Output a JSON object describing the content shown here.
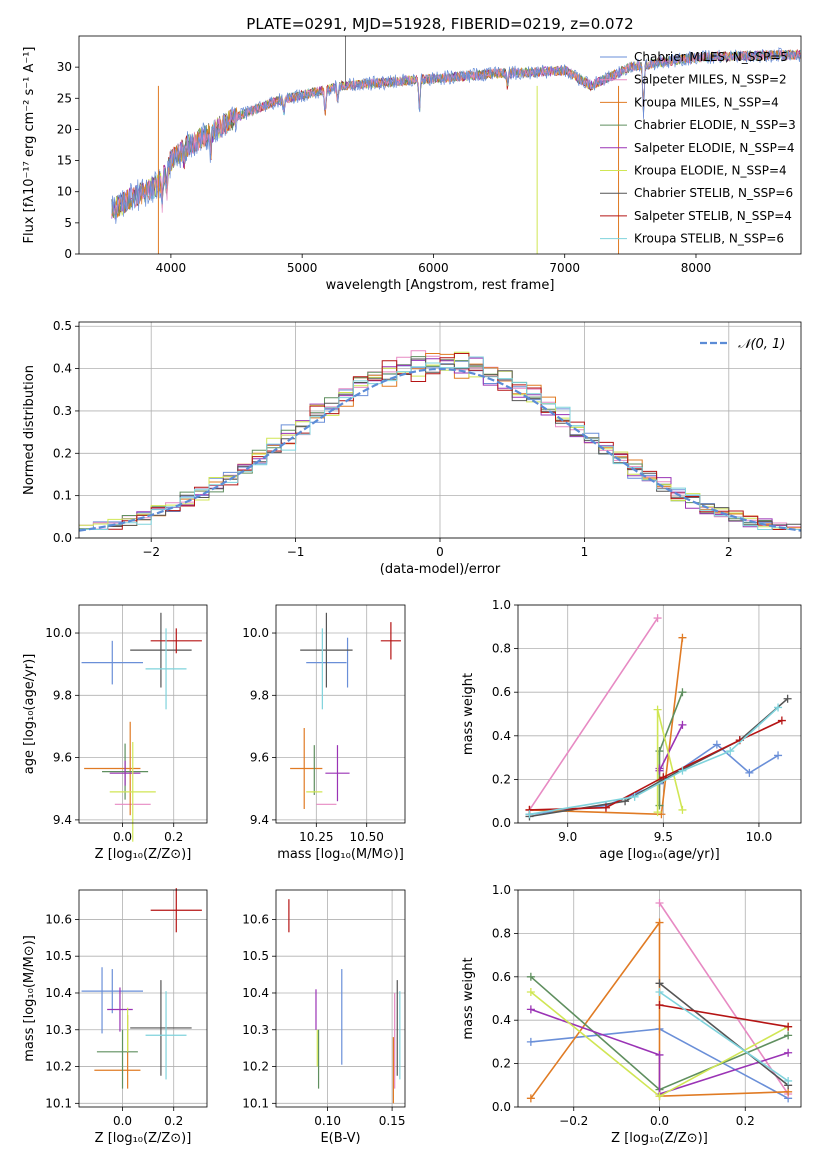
{
  "figure_title": "PLATE=0291, MJD=51928, FIBERID=0219, z=0.072",
  "chart_data": [
    {
      "id": "spectrum",
      "type": "line",
      "title": "PLATE=0291, MJD=51928, FIBERID=0219, z=0.072",
      "xlabel": "wavelength [Angstrom, rest frame]",
      "ylabel": "Flux [fλ10⁻¹⁷ erg cm⁻² s⁻¹ A⁻¹]",
      "xlim": [
        3300,
        8800
      ],
      "ylim": [
        0,
        35
      ],
      "xticks": [
        4000,
        5000,
        6000,
        7000,
        8000
      ],
      "yticks": [
        0,
        5,
        10,
        15,
        20,
        25,
        30
      ],
      "legend_position": "top-right",
      "continuum_x": [
        3550,
        3700,
        3900,
        4000,
        4100,
        4300,
        4500,
        4800,
        5000,
        5300,
        5600,
        5900,
        6200,
        6500,
        6800,
        7000,
        7200,
        7500,
        7800,
        8000,
        8300,
        8800
      ],
      "continuum_y": [
        7,
        9,
        11,
        15,
        17,
        19.5,
        22,
        24.5,
        25.5,
        27,
        27.5,
        28,
        28.5,
        29,
        29.2,
        29.5,
        27,
        30,
        31,
        31.5,
        31.8,
        32
      ],
      "series": [
        {
          "name": "Chabrier MILES, N_SSP=5",
          "color": "#6a8fd8"
        },
        {
          "name": "Salpeter MILES, N_SSP=2",
          "color": "#e78ac3"
        },
        {
          "name": "Kroupa MILES, N_SSP=4",
          "color": "#e07b24"
        },
        {
          "name": "Chabrier ELODIE, N_SSP=3",
          "color": "#5f8f5f"
        },
        {
          "name": "Salpeter ELODIE, N_SSP=4",
          "color": "#9a33b5"
        },
        {
          "name": "Kroupa ELODIE, N_SSP=4",
          "color": "#d0e654"
        },
        {
          "name": "Chabrier STELIB, N_SSP=6",
          "color": "#555555"
        },
        {
          "name": "Salpeter STELIB, N_SSP=4",
          "color": "#b51414"
        },
        {
          "name": "Kroupa STELIB, N_SSP=6",
          "color": "#7fd3dc"
        }
      ]
    },
    {
      "id": "residuals",
      "type": "line",
      "xlabel": "(data-model)/error",
      "ylabel": "Normed distribution",
      "xlim": [
        -2.5,
        2.5
      ],
      "ylim": [
        0,
        0.51
      ],
      "xticks": [
        -2,
        -1,
        0,
        1,
        2
      ],
      "yticks": [
        0.0,
        0.1,
        0.2,
        0.3,
        0.4,
        0.5
      ],
      "grid": true,
      "legend_position": "top-right",
      "reference_series": "𝒩(0, 1)",
      "histogram_series_colors": [
        "#6a8fd8",
        "#e78ac3",
        "#e07b24",
        "#5f8f5f",
        "#9a33b5",
        "#d0e654",
        "#555555",
        "#b51414",
        "#7fd3dc"
      ]
    },
    {
      "id": "age_vs_Z",
      "type": "scatter",
      "xlabel": "Z [log₁₀(Z/Z⊙)]",
      "ylabel": "age  [log₁₀(age/yr)]",
      "xlim": [
        -0.17,
        0.33
      ],
      "ylim": [
        9.39,
        10.09
      ],
      "xticks": [
        0.0,
        0.2
      ],
      "yticks": [
        9.4,
        9.6,
        9.8,
        10.0
      ],
      "grid": true,
      "points": [
        {
          "x": -0.04,
          "xerr": 0.12,
          "y": 9.905,
          "yerr": 0.07,
          "color": "#6a8fd8"
        },
        {
          "x": 0.04,
          "xerr": 0.07,
          "y": 9.45,
          "yerr": 0.0,
          "color": "#e78ac3"
        },
        {
          "x": 0.03,
          "xerr": 0.0,
          "y": 9.565,
          "yerr": 0.15,
          "color": "#e07b24"
        },
        {
          "x": -0.04,
          "xerr": 0.11,
          "y": 9.565,
          "yerr": 0.0,
          "color": "#e07b24"
        },
        {
          "x": 0.01,
          "xerr": 0.09,
          "y": 9.555,
          "yerr": 0.09,
          "color": "#5f8f5f"
        },
        {
          "x": 0.01,
          "xerr": 0.06,
          "y": 9.55,
          "yerr": 0.04,
          "color": "#9a33b5"
        },
        {
          "x": 0.04,
          "xerr": 0.09,
          "y": 9.49,
          "yerr": 0.16,
          "color": "#d0e654"
        },
        {
          "x": 0.15,
          "xerr": 0.12,
          "y": 9.945,
          "yerr": 0.12,
          "color": "#555555"
        },
        {
          "x": 0.21,
          "xerr": 0.1,
          "y": 9.975,
          "yerr": 0.04,
          "color": "#b51414"
        },
        {
          "x": 0.17,
          "xerr": 0.08,
          "y": 9.885,
          "yerr": 0.13,
          "color": "#7fd3dc"
        }
      ]
    },
    {
      "id": "age_vs_mass",
      "type": "scatter",
      "xlabel": "mass [log₁₀(M/M⊙)]",
      "ylabel": "",
      "xlim": [
        10.05,
        10.69
      ],
      "ylim": [
        9.39,
        10.09
      ],
      "xticks": [
        10.25,
        10.5
      ],
      "yticks": [
        9.4,
        9.6,
        9.8,
        10.0
      ],
      "grid": true,
      "points": [
        {
          "x": 10.405,
          "xerr": 0.0,
          "y": 9.905,
          "yerr": 0.08,
          "color": "#6a8fd8"
        },
        {
          "x": 10.3,
          "xerr": 0.1,
          "y": 9.905,
          "yerr": 0.0,
          "color": "#6a8fd8"
        },
        {
          "x": 10.3,
          "xerr": 0.05,
          "y": 9.45,
          "yerr": 0.0,
          "color": "#e78ac3"
        },
        {
          "x": 10.19,
          "xerr": 0.0,
          "y": 9.565,
          "yerr": 0.13,
          "color": "#e07b24"
        },
        {
          "x": 10.2,
          "xerr": 0.08,
          "y": 9.565,
          "yerr": 0.0,
          "color": "#e07b24"
        },
        {
          "x": 10.24,
          "xerr": 0.0,
          "y": 9.56,
          "yerr": 0.08,
          "color": "#5f8f5f"
        },
        {
          "x": 10.355,
          "xerr": 0.06,
          "y": 9.55,
          "yerr": 0.09,
          "color": "#9a33b5"
        },
        {
          "x": 10.24,
          "xerr": 0.04,
          "y": 9.49,
          "yerr": 0.0,
          "color": "#d0e654"
        },
        {
          "x": 10.3,
          "xerr": 0.13,
          "y": 9.945,
          "yerr": 0.12,
          "color": "#555555"
        },
        {
          "x": 10.62,
          "xerr": 0.05,
          "y": 9.975,
          "yerr": 0.06,
          "color": "#b51414"
        },
        {
          "x": 10.28,
          "xerr": 0.0,
          "y": 9.885,
          "yerr": 0.13,
          "color": "#7fd3dc"
        }
      ]
    },
    {
      "id": "weight_vs_age",
      "type": "line",
      "xlabel": "age  [log₁₀(age/yr)]",
      "ylabel": "mass weight",
      "xlim": [
        8.74,
        10.22
      ],
      "ylim": [
        0,
        1.0
      ],
      "xticks": [
        9.0,
        9.5,
        10.0
      ],
      "yticks": [
        0.0,
        0.2,
        0.4,
        0.6,
        0.8,
        1.0
      ],
      "grid": true,
      "series": [
        {
          "color": "#6a8fd8",
          "x": [
            8.8,
            9.2,
            9.48,
            9.78,
            9.95,
            10.1
          ],
          "y": [
            0.04,
            0.08,
            0.18,
            0.36,
            0.23,
            0.31
          ]
        },
        {
          "color": "#e78ac3",
          "x": [
            8.8,
            9.47
          ],
          "y": [
            0.06,
            0.94
          ]
        },
        {
          "color": "#e07b24",
          "x": [
            8.8,
            9.49,
            9.6
          ],
          "y": [
            0.06,
            0.04,
            0.85
          ]
        },
        {
          "color": "#5f8f5f",
          "x": [
            9.48,
            9.48,
            9.6
          ],
          "y": [
            0.08,
            0.33,
            0.6
          ]
        },
        {
          "color": "#9a33b5",
          "x": [
            9.48,
            9.48,
            9.6
          ],
          "y": [
            0.25,
            0.24,
            0.45
          ]
        },
        {
          "color": "#d0e654",
          "x": [
            9.47,
            9.47,
            9.6
          ],
          "y": [
            0.05,
            0.52,
            0.06
          ]
        },
        {
          "color": "#555555",
          "x": [
            8.8,
            9.3,
            9.5,
            9.9,
            10.15
          ],
          "y": [
            0.03,
            0.1,
            0.2,
            0.38,
            0.57
          ]
        },
        {
          "color": "#b51414",
          "x": [
            8.8,
            9.2,
            9.5,
            9.9,
            10.12
          ],
          "y": [
            0.06,
            0.07,
            0.21,
            0.38,
            0.47
          ]
        },
        {
          "color": "#7fd3dc",
          "x": [
            8.8,
            9.35,
            9.6,
            9.85,
            10.1
          ],
          "y": [
            0.04,
            0.12,
            0.24,
            0.33,
            0.53
          ]
        }
      ]
    },
    {
      "id": "mass_vs_Z",
      "type": "scatter",
      "xlabel": "Z [log₁₀(Z/Z⊙)]",
      "ylabel": "mass [log₁₀(M/M⊙)]",
      "xlim": [
        -0.17,
        0.33
      ],
      "ylim": [
        10.09,
        10.68
      ],
      "xticks": [
        0.0,
        0.2
      ],
      "yticks": [
        10.1,
        10.2,
        10.3,
        10.4,
        10.5,
        10.6
      ],
      "grid": true,
      "points": [
        {
          "x": -0.04,
          "xerr": 0.12,
          "y": 10.405,
          "yerr": 0.06,
          "color": "#6a8fd8"
        },
        {
          "x": -0.08,
          "xerr": 0.0,
          "y": 10.38,
          "yerr": 0.09,
          "color": "#6a8fd8"
        },
        {
          "x": -0.02,
          "xerr": 0.09,
          "y": 10.19,
          "yerr": 0.0,
          "color": "#e07b24"
        },
        {
          "x": 0.02,
          "xerr": 0.0,
          "y": 10.24,
          "yerr": 0.1,
          "color": "#e07b24"
        },
        {
          "x": -0.02,
          "xerr": 0.08,
          "y": 10.24,
          "yerr": 0.0,
          "color": "#5f8f5f"
        },
        {
          "x": 0.0,
          "xerr": 0.0,
          "y": 10.22,
          "yerr": 0.08,
          "color": "#5f8f5f"
        },
        {
          "x": -0.01,
          "xerr": 0.05,
          "y": 10.355,
          "yerr": 0.06,
          "color": "#9a33b5"
        },
        {
          "x": 0.02,
          "xerr": 0.0,
          "y": 10.3,
          "yerr": 0.06,
          "color": "#d0e654"
        },
        {
          "x": 0.15,
          "xerr": 0.12,
          "y": 10.305,
          "yerr": 0.13,
          "color": "#555555"
        },
        {
          "x": 0.21,
          "xerr": 0.1,
          "y": 10.625,
          "yerr": 0.06,
          "color": "#b51414"
        },
        {
          "x": 0.17,
          "xerr": 0.08,
          "y": 10.285,
          "yerr": 0.12,
          "color": "#7fd3dc"
        }
      ]
    },
    {
      "id": "mass_vs_ebv",
      "type": "scatter",
      "xlabel": "E(B-V)",
      "ylabel": "",
      "xlim": [
        0.06,
        0.16
      ],
      "ylim": [
        10.09,
        10.68
      ],
      "xticks": [
        0.1,
        0.15
      ],
      "yticks": [
        10.1,
        10.2,
        10.3,
        10.4,
        10.5,
        10.6
      ],
      "grid": true,
      "points": [
        {
          "x": 0.111,
          "xerr": 0.0,
          "y": 10.335,
          "yerr": 0.13,
          "color": "#6a8fd8"
        },
        {
          "x": 0.151,
          "xerr": 0.0,
          "y": 10.19,
          "yerr": 0.09,
          "color": "#e07b24"
        },
        {
          "x": 0.152,
          "xerr": 0.0,
          "y": 10.27,
          "yerr": 0.13,
          "color": "#e78ac3"
        },
        {
          "x": 0.093,
          "xerr": 0.0,
          "y": 10.22,
          "yerr": 0.08,
          "color": "#5f8f5f"
        },
        {
          "x": 0.091,
          "xerr": 0.0,
          "y": 10.355,
          "yerr": 0.055,
          "color": "#9a33b5"
        },
        {
          "x": 0.092,
          "xerr": 0.0,
          "y": 10.25,
          "yerr": 0.05,
          "color": "#d0e654"
        },
        {
          "x": 0.154,
          "xerr": 0.0,
          "y": 10.305,
          "yerr": 0.13,
          "color": "#555555"
        },
        {
          "x": 0.07,
          "xerr": 0.0,
          "y": 10.61,
          "yerr": 0.045,
          "color": "#b51414"
        },
        {
          "x": 0.156,
          "xerr": 0.0,
          "y": 10.285,
          "yerr": 0.12,
          "color": "#7fd3dc"
        }
      ]
    },
    {
      "id": "weight_vs_Z",
      "type": "line",
      "xlabel": "Z [log₁₀(Z/Z⊙)]",
      "ylabel": "mass weight",
      "xlim": [
        -0.33,
        0.33
      ],
      "ylim": [
        0,
        1.0
      ],
      "xticks": [
        -0.2,
        0.0,
        0.2
      ],
      "yticks": [
        0.0,
        0.2,
        0.4,
        0.6,
        0.8,
        1.0
      ],
      "grid": true,
      "series": [
        {
          "color": "#6a8fd8",
          "x": [
            -0.3,
            0.0,
            0.3
          ],
          "y": [
            0.3,
            0.36,
            0.04
          ]
        },
        {
          "color": "#e78ac3",
          "x": [
            0.0,
            0.3
          ],
          "y": [
            0.94,
            0.06
          ]
        },
        {
          "color": "#e07b24",
          "x": [
            -0.3,
            0.0,
            0.0,
            0.3
          ],
          "y": [
            0.04,
            0.85,
            0.05,
            0.07
          ]
        },
        {
          "color": "#5f8f5f",
          "x": [
            -0.3,
            0.0,
            0.3
          ],
          "y": [
            0.6,
            0.08,
            0.33
          ]
        },
        {
          "color": "#9a33b5",
          "x": [
            -0.3,
            0.0,
            0.0,
            0.3
          ],
          "y": [
            0.45,
            0.24,
            0.06,
            0.25
          ]
        },
        {
          "color": "#d0e654",
          "x": [
            -0.3,
            0.0,
            0.3
          ],
          "y": [
            0.53,
            0.05,
            0.37
          ]
        },
        {
          "color": "#555555",
          "x": [
            0.0,
            0.3
          ],
          "y": [
            0.57,
            0.1
          ]
        },
        {
          "color": "#b51414",
          "x": [
            0.0,
            0.3
          ],
          "y": [
            0.47,
            0.37
          ]
        },
        {
          "color": "#7fd3dc",
          "x": [
            0.0,
            0.3
          ],
          "y": [
            0.53,
            0.12
          ]
        }
      ]
    }
  ]
}
